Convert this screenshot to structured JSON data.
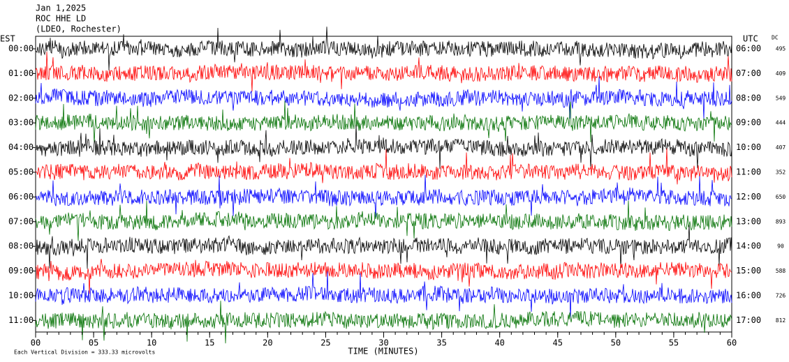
{
  "header": {
    "date": "Jan 1,2025",
    "station": "ROC HHE LD",
    "network": "(LDEO, Rochester)"
  },
  "left_axis_title": "EST",
  "right_axis_title": "UTC",
  "dc_title": "DC",
  "trace_colors": [
    "#000000",
    "#ff0000",
    "#0000ff",
    "#007000"
  ],
  "rows": [
    {
      "est": "00:00",
      "utc": "06:00",
      "dc": "495"
    },
    {
      "est": "01:00",
      "utc": "07:00",
      "dc": "409"
    },
    {
      "est": "02:00",
      "utc": "08:00",
      "dc": "549"
    },
    {
      "est": "03:00",
      "utc": "09:00",
      "dc": "444"
    },
    {
      "est": "04:00",
      "utc": "10:00",
      "dc": "407"
    },
    {
      "est": "05:00",
      "utc": "11:00",
      "dc": "352"
    },
    {
      "est": "06:00",
      "utc": "12:00",
      "dc": "650"
    },
    {
      "est": "07:00",
      "utc": "13:00",
      "dc": "893"
    },
    {
      "est": "08:00",
      "utc": "14:00",
      "dc": "90"
    },
    {
      "est": "09:00",
      "utc": "15:00",
      "dc": "588"
    },
    {
      "est": "10:00",
      "utc": "16:00",
      "dc": "726"
    },
    {
      "est": "11:00",
      "utc": "17:00",
      "dc": "812"
    }
  ],
  "x_axis": {
    "ticks": [
      "00",
      "05",
      "10",
      "15",
      "20",
      "25",
      "30",
      "35",
      "40",
      "45",
      "50",
      "55",
      "60"
    ],
    "label": "TIME (MINUTES)"
  },
  "footer": "Each Vertical Division =  333.33 microvolts"
}
